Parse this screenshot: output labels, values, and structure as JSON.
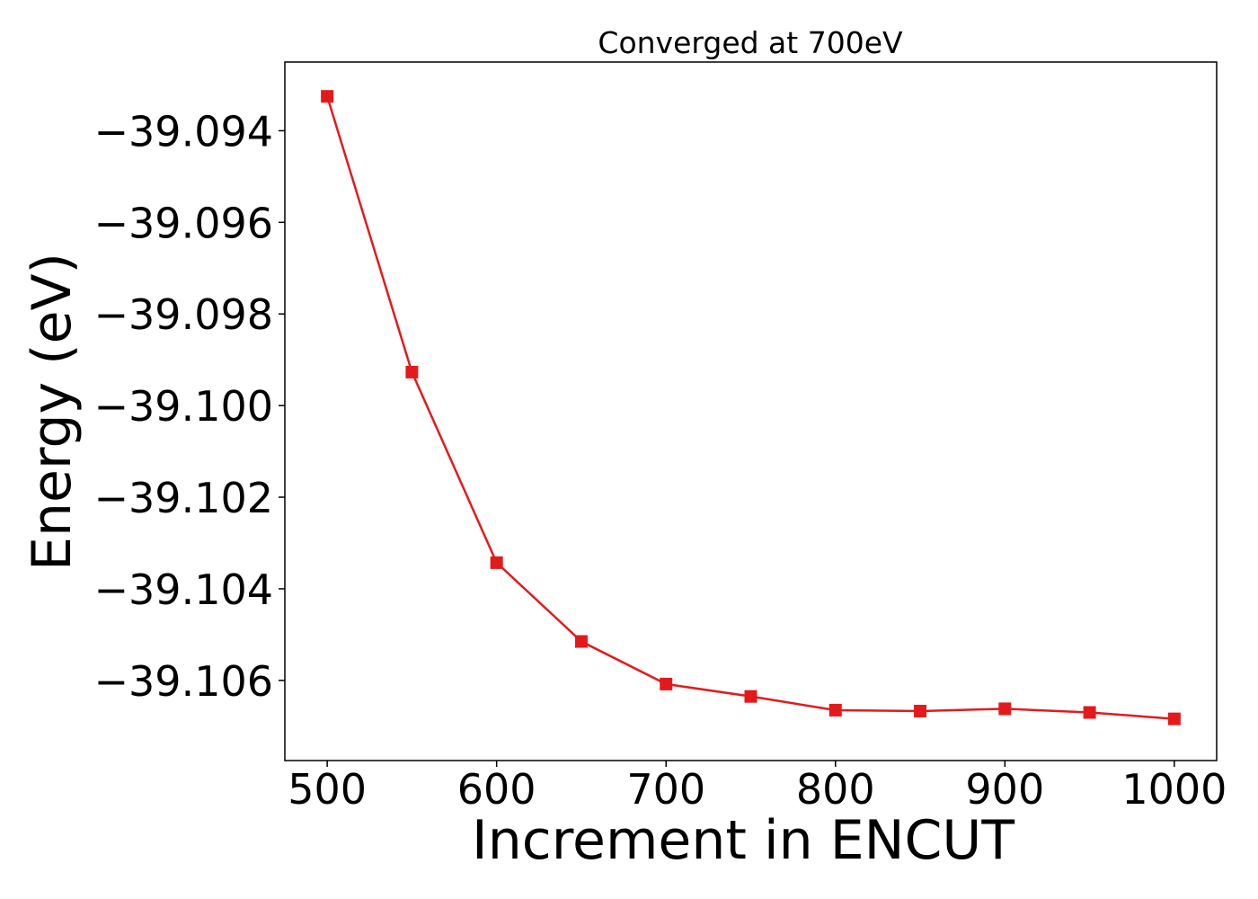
{
  "chart_data": {
    "type": "line",
    "title": "Converged at 700eV",
    "xlabel": "Increment in ENCUT",
    "ylabel": "Energy (eV)",
    "xlim": [
      475,
      1025
    ],
    "ylim": [
      -39.10775,
      -39.0925
    ],
    "x_ticks": [
      500,
      600,
      700,
      800,
      900,
      1000
    ],
    "x_tick_labels": [
      "500",
      "600",
      "700",
      "800",
      "900",
      "1000"
    ],
    "y_ticks": [
      -39.094,
      -39.096,
      -39.098,
      -39.1,
      -39.102,
      -39.104,
      -39.106
    ],
    "y_tick_labels": [
      "−39.094",
      "−39.096",
      "−39.098",
      "−39.100",
      "−39.102",
      "−39.104",
      "−39.106"
    ],
    "grid": false,
    "marker": "square",
    "series": [
      {
        "color": "#e31a1c",
        "x": [
          500,
          550,
          600,
          650,
          700,
          750,
          800,
          850,
          900,
          950,
          1000
        ],
        "y": [
          -39.09325,
          -39.09927,
          -39.10343,
          -39.10515,
          -39.10608,
          -39.10635,
          -39.10665,
          -39.10667,
          -39.10662,
          -39.1067,
          -39.10684
        ]
      }
    ]
  }
}
